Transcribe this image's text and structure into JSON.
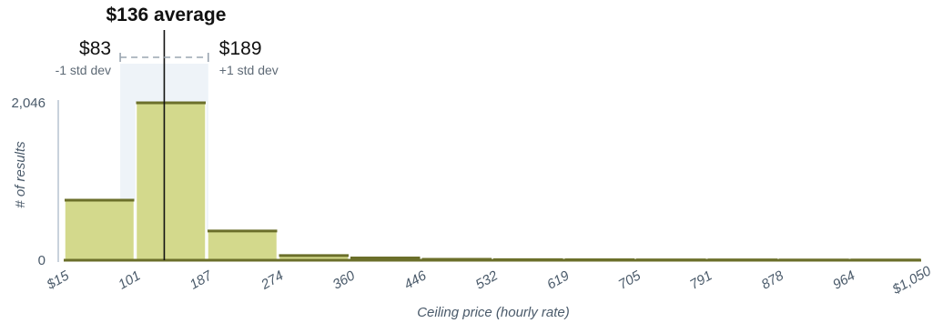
{
  "chart_data": {
    "type": "bar",
    "subtype": "histogram",
    "bin_edges": [
      15,
      101,
      187,
      274,
      360,
      446,
      532,
      619,
      705,
      791,
      878,
      964,
      1050
    ],
    "x_tick_labels": [
      "$15",
      "101",
      "187",
      "274",
      "360",
      "446",
      "532",
      "619",
      "705",
      "791",
      "878",
      "964",
      "$1,050"
    ],
    "values": [
      780,
      2046,
      380,
      60,
      30,
      12,
      8,
      6,
      5,
      4,
      3,
      3
    ],
    "ylim": [
      0,
      2046
    ],
    "y_tick_labels": [
      "2,046",
      "0"
    ],
    "y_ticks": [
      2046,
      0
    ],
    "xlabel": "Ceiling price (hourly rate)",
    "ylabel": "# of results",
    "mean": {
      "value": 136,
      "label": "$136 average"
    },
    "std_dev": {
      "low": 83,
      "high": 189,
      "low_value_label": "$83",
      "low_text": "-1 std dev",
      "high_value_label": "$189",
      "high_text": "+1 std dev"
    },
    "colors": {
      "bar_fill": "#d3d98c",
      "bar_top": "#6b6f2a",
      "band": "#eef3f8",
      "mean_line": "#111111",
      "bracket": "#9aa5b0"
    },
    "grid": false,
    "legend": "none"
  }
}
